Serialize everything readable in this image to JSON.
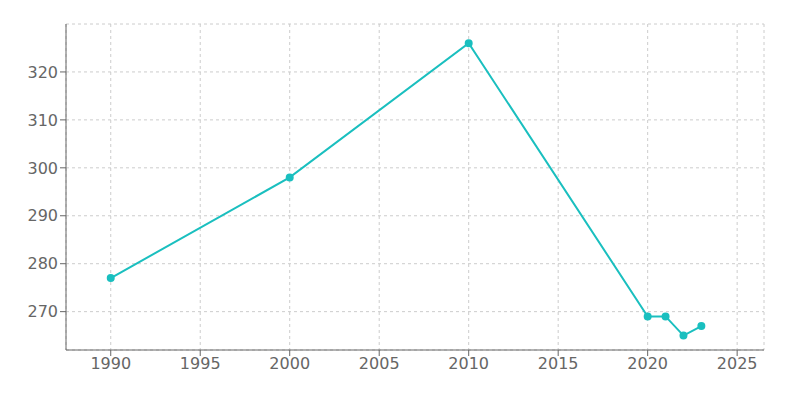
{
  "chart_data": {
    "type": "line",
    "x": [
      1990,
      2000,
      2010,
      2020,
      2021,
      2022,
      2023
    ],
    "series": [
      {
        "values": [
          277,
          298,
          326,
          269,
          269,
          265,
          267
        ],
        "color": "#1abfbf",
        "marker": "circle",
        "line_style": "solid"
      }
    ],
    "xlim": [
      1987.5,
      2026.5
    ],
    "ylim": [
      262,
      330
    ],
    "xticks": [
      1990,
      1995,
      2000,
      2005,
      2010,
      2015,
      2020,
      2025
    ],
    "yticks": [
      270,
      280,
      290,
      300,
      310,
      320
    ],
    "grid": true
  }
}
